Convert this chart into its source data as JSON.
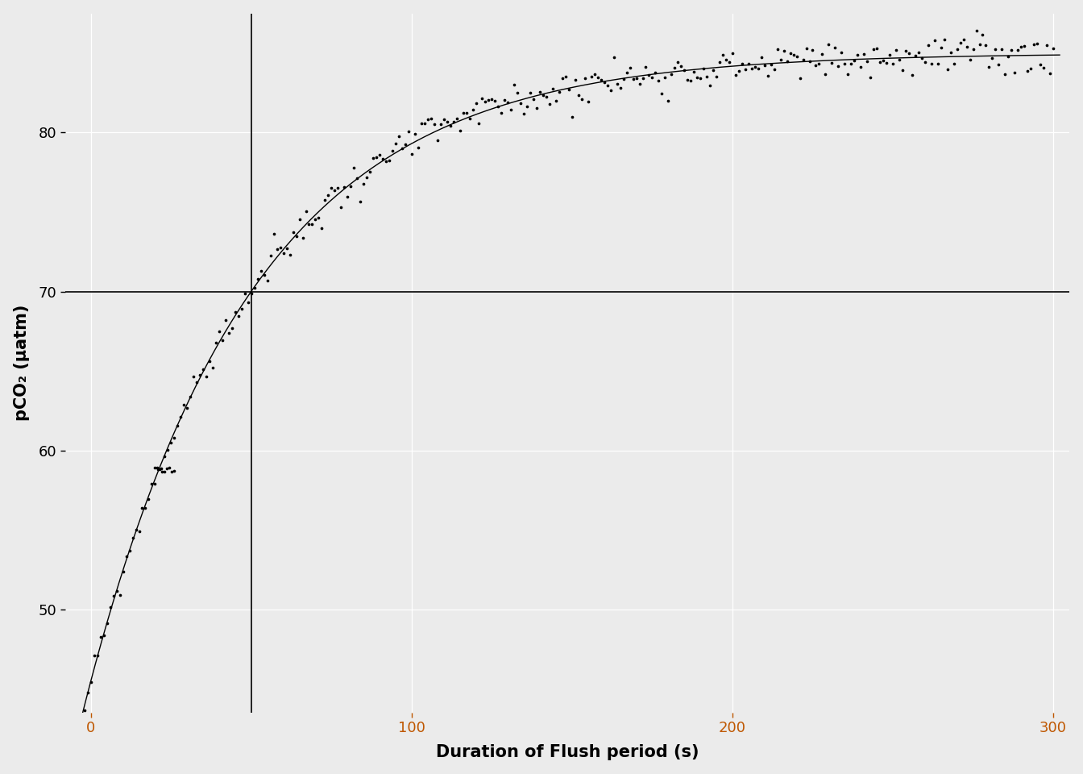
{
  "xlabel": "Duration of Flush period (s)",
  "ylabel": "pCO₂ (μatm)",
  "xlim": [
    -8,
    305
  ],
  "ylim": [
    43.5,
    87.5
  ],
  "xticks": [
    0,
    100,
    200,
    300
  ],
  "yticks": [
    50,
    60,
    70,
    80
  ],
  "tau": 50,
  "hline_y": 70,
  "background_color": "#EBEBEB",
  "grid_color": "#FFFFFF",
  "data_color": "#000000",
  "fit_color": "#000000",
  "vline_color": "#000000",
  "hline_color": "#000000",
  "point_size": 7,
  "fit_A": 85.2,
  "fit_C": 45.5,
  "fit_tau": 25.0,
  "xtick_color": "#BF5700",
  "ytick_color": "#000000",
  "label_fontsize": 15,
  "tick_fontsize": 13
}
